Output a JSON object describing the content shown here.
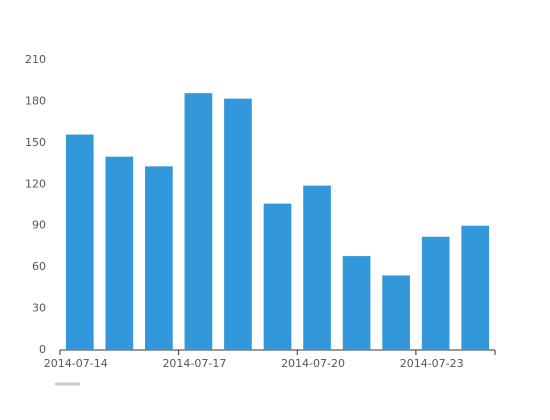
{
  "chart_data": {
    "type": "bar",
    "categories": [
      "2014-07-14",
      null,
      null,
      "2014-07-17",
      null,
      null,
      "2014-07-20",
      null,
      null,
      "2014-07-23",
      null
    ],
    "values": [
      156,
      140,
      133,
      186,
      182,
      106,
      119,
      68,
      54,
      82,
      90
    ],
    "color": "#3398db",
    "ylim": [
      0,
      210
    ],
    "yticks": [
      0,
      30,
      60,
      90,
      120,
      150,
      180,
      210
    ],
    "grid": false
  }
}
